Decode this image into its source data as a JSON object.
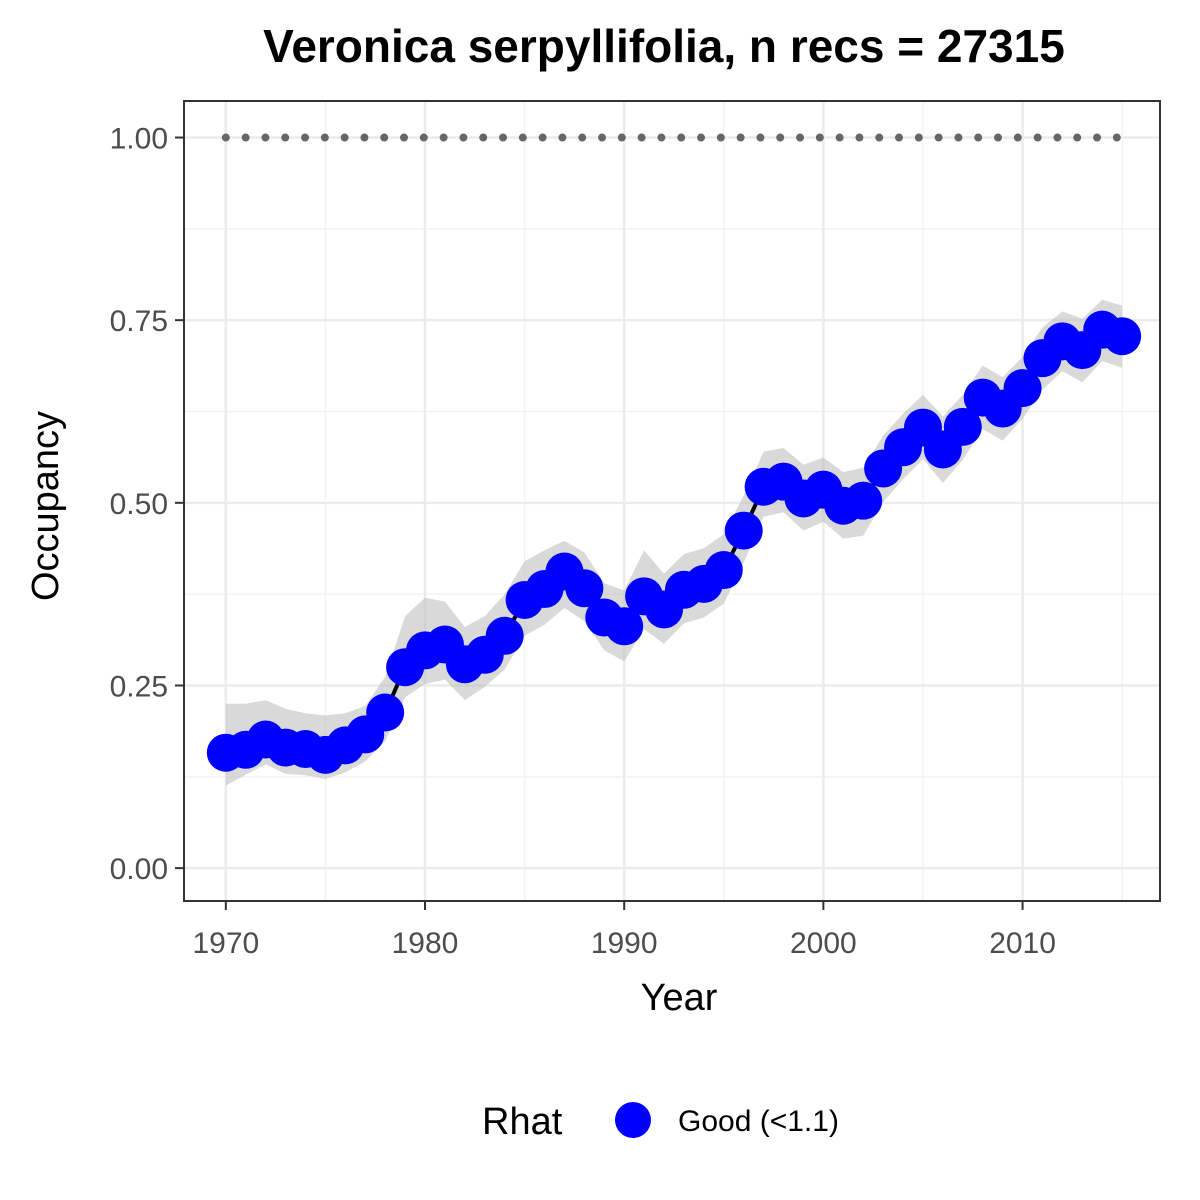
{
  "chart_data": {
    "type": "line",
    "title": "Veronica serpyllifolia, n recs = 27315",
    "xlabel": "Year",
    "ylabel": "Occupancy",
    "xlim": [
      1967.9,
      2016.9
    ],
    "ylim": [
      -0.045,
      1.05
    ],
    "x_ticks": [
      1970,
      1980,
      1990,
      2000,
      2010
    ],
    "x_tick_labels": [
      "1970",
      "1980",
      "1990",
      "2000",
      "2010"
    ],
    "y_ticks": [
      0,
      0.25,
      0.5,
      0.75,
      1.0
    ],
    "y_tick_labels": [
      "0.00",
      "0.25",
      "0.50",
      "0.75",
      "1.00"
    ],
    "grid": true,
    "legend": {
      "position": "bottom",
      "title": "Rhat",
      "entries": [
        {
          "label": "Good (<1.1)",
          "color": "#0000ff"
        }
      ]
    },
    "reference_line": {
      "y": 1.0,
      "style": "dotted",
      "color": "#666666"
    },
    "series": [
      {
        "name": "Good (<1.1)",
        "color": "#0000ff",
        "x": [
          1970,
          1971,
          1972,
          1973,
          1974,
          1975,
          1976,
          1977,
          1978,
          1979,
          1980,
          1981,
          1982,
          1983,
          1984,
          1985,
          1986,
          1987,
          1988,
          1989,
          1990,
          1991,
          1992,
          1993,
          1994,
          1995,
          1996,
          1997,
          1998,
          1999,
          2000,
          2001,
          2002,
          2003,
          2004,
          2005,
          2006,
          2007,
          2008,
          2009,
          2010,
          2011,
          2012,
          2013,
          2014,
          2015
        ],
        "y": [
          0.158,
          0.162,
          0.176,
          0.165,
          0.163,
          0.155,
          0.168,
          0.183,
          0.213,
          0.275,
          0.298,
          0.306,
          0.279,
          0.292,
          0.318,
          0.367,
          0.382,
          0.406,
          0.383,
          0.343,
          0.331,
          0.372,
          0.354,
          0.381,
          0.389,
          0.408,
          0.462,
          0.522,
          0.529,
          0.506,
          0.518,
          0.496,
          0.503,
          0.547,
          0.576,
          0.603,
          0.573,
          0.604,
          0.644,
          0.629,
          0.657,
          0.698,
          0.721,
          0.709,
          0.737,
          0.728
        ],
        "lower": [
          0.113,
          0.128,
          0.142,
          0.129,
          0.127,
          0.122,
          0.131,
          0.146,
          0.174,
          0.234,
          0.252,
          0.258,
          0.23,
          0.248,
          0.272,
          0.318,
          0.333,
          0.356,
          0.338,
          0.298,
          0.283,
          0.327,
          0.307,
          0.335,
          0.343,
          0.362,
          0.418,
          0.481,
          0.487,
          0.462,
          0.474,
          0.451,
          0.455,
          0.501,
          0.532,
          0.56,
          0.527,
          0.559,
          0.601,
          0.585,
          0.615,
          0.655,
          0.68,
          0.665,
          0.694,
          0.685
        ],
        "upper": [
          0.225,
          0.225,
          0.23,
          0.218,
          0.212,
          0.209,
          0.212,
          0.222,
          0.262,
          0.345,
          0.37,
          0.365,
          0.33,
          0.345,
          0.375,
          0.42,
          0.435,
          0.448,
          0.432,
          0.39,
          0.38,
          0.435,
          0.403,
          0.43,
          0.438,
          0.457,
          0.51,
          0.57,
          0.575,
          0.552,
          0.562,
          0.542,
          0.548,
          0.592,
          0.622,
          0.648,
          0.618,
          0.648,
          0.688,
          0.672,
          0.7,
          0.74,
          0.762,
          0.752,
          0.778,
          0.77
        ]
      }
    ]
  }
}
